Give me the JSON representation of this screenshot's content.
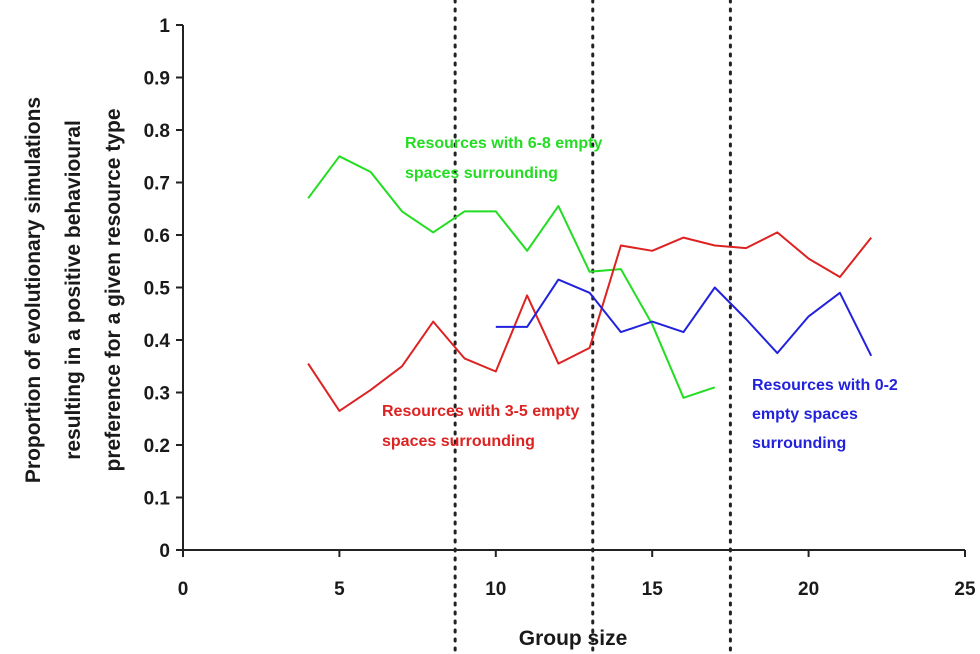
{
  "chart_data": {
    "type": "line",
    "xlabel": "Group size",
    "ylabel_lines": [
      "Proportion of  evolutionary simulations",
      "resulting in a positive behavioural",
      "preference for a given resource type"
    ],
    "xlim": [
      0,
      25
    ],
    "ylim": [
      0,
      1
    ],
    "x_ticks": [
      0,
      5,
      10,
      15,
      20,
      25
    ],
    "y_ticks": [
      0,
      0.1,
      0.2,
      0.3,
      0.4,
      0.5,
      0.6,
      0.7,
      0.8,
      0.9,
      1
    ],
    "x_tick_labels": [
      "0",
      "5",
      "10",
      "15",
      "20",
      "25"
    ],
    "y_tick_labels": [
      "0",
      "0.1",
      "0.2",
      "0.3",
      "0.4",
      "0.5",
      "0.6",
      "0.7",
      "0.8",
      "0.9",
      "1"
    ],
    "vlines": [
      8.7,
      13.1,
      17.5
    ],
    "grid": false,
    "series": [
      {
        "color": "#22dd22",
        "x": [
          4,
          5,
          6,
          7,
          8,
          9,
          10,
          11,
          12,
          13,
          14,
          15,
          16,
          17
        ],
        "y": [
          0.67,
          0.75,
          0.72,
          0.645,
          0.605,
          0.645,
          0.645,
          0.57,
          0.655,
          0.53,
          0.535,
          0.43,
          0.29,
          0.31
        ]
      },
      {
        "color": "#dd2222",
        "x": [
          4,
          5,
          6,
          7,
          8,
          9,
          10,
          11,
          12,
          13,
          14,
          15,
          16,
          17,
          18,
          19,
          20,
          21,
          22
        ],
        "y": [
          0.355,
          0.265,
          0.305,
          0.35,
          0.435,
          0.365,
          0.34,
          0.485,
          0.355,
          0.385,
          0.58,
          0.57,
          0.595,
          0.58,
          0.575,
          0.605,
          0.555,
          0.52,
          0.595
        ]
      },
      {
        "color": "#2222dd",
        "x": [
          10,
          11,
          12,
          13,
          14,
          15,
          16,
          17,
          18,
          19,
          20,
          21,
          22
        ],
        "y": [
          0.425,
          0.425,
          0.515,
          0.49,
          0.415,
          0.435,
          0.415,
          0.5,
          0.44,
          0.375,
          0.445,
          0.49,
          0.37
        ]
      }
    ],
    "annotations": [
      {
        "color": "#22dd22",
        "lines": [
          "Resources with 6-8 empty",
          "spaces surrounding"
        ]
      },
      {
        "color": "#dd2222",
        "lines": [
          "Resources with 3-5 empty",
          "spaces surrounding"
        ]
      },
      {
        "color": "#2222dd",
        "lines": [
          "Resources with 0-2",
          "empty spaces",
          "surrounding"
        ]
      }
    ]
  }
}
